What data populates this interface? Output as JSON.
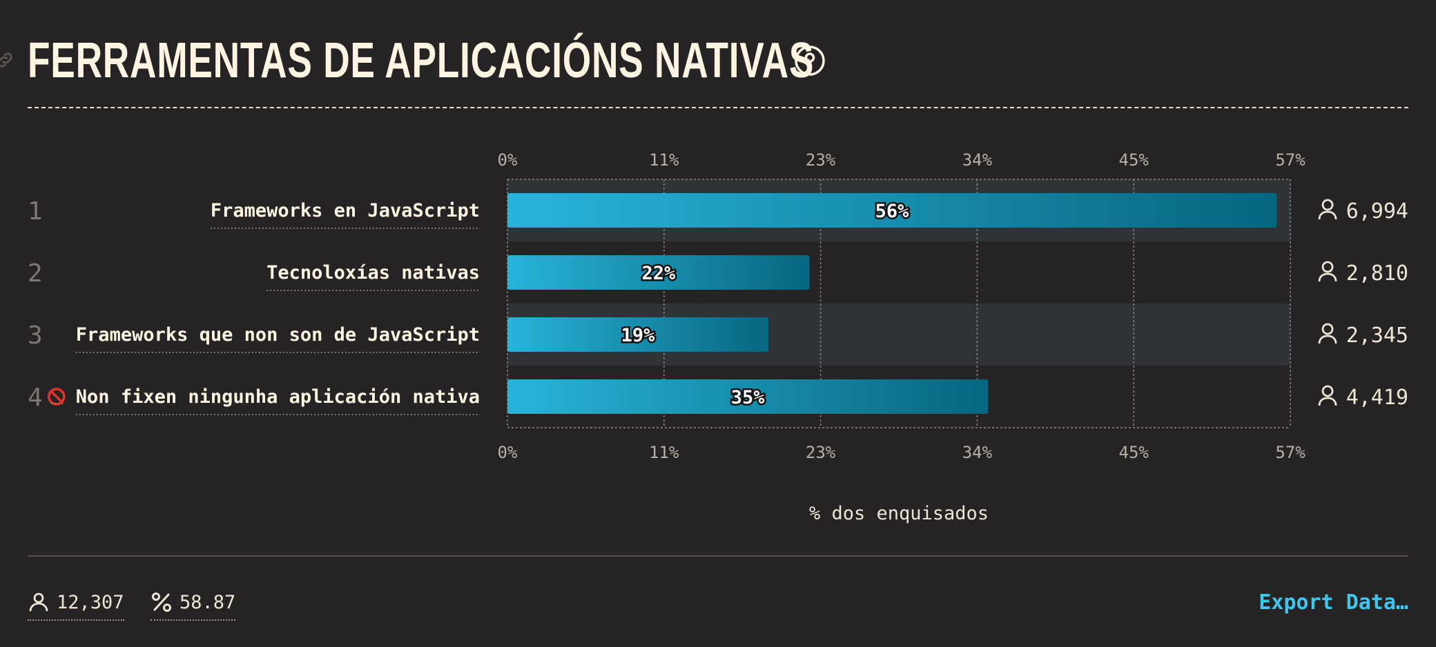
{
  "title": "FERRAMENTAS DE APLICACIÓNS NATIVAS",
  "footer": {
    "respondents": "12,307",
    "percentage": "58.87",
    "export_label": "Export Data…"
  },
  "colors": {
    "background": "#262325",
    "bar_start": "#27b4da",
    "bar_end": "#08667f",
    "accent": "#3fc6ec"
  },
  "icons": {
    "help": "question-circle-icon",
    "link": "link-icon",
    "respondents": "user-icon",
    "percent": "percent-icon",
    "no_entry": "no-entry-icon"
  },
  "chart_data": {
    "type": "bar",
    "orientation": "horizontal",
    "xlabel": "% dos enquisados",
    "xlim": [
      0,
      57
    ],
    "x_ticks": [
      "0%",
      "11%",
      "23%",
      "34%",
      "45%",
      "57%"
    ],
    "grid": true,
    "categories": [
      "Frameworks en JavaScript",
      "Tecnoloxías nativas",
      "Frameworks que non son de JavaScript",
      "Non fixen ningunha aplicación nativa"
    ],
    "ranks": [
      "1",
      "2",
      "3",
      "4"
    ],
    "values": [
      56,
      22,
      19,
      35
    ],
    "value_labels": [
      "56%",
      "22%",
      "19%",
      "35%"
    ],
    "counts": [
      "6,994",
      "2,810",
      "2,345",
      "4,419"
    ]
  }
}
